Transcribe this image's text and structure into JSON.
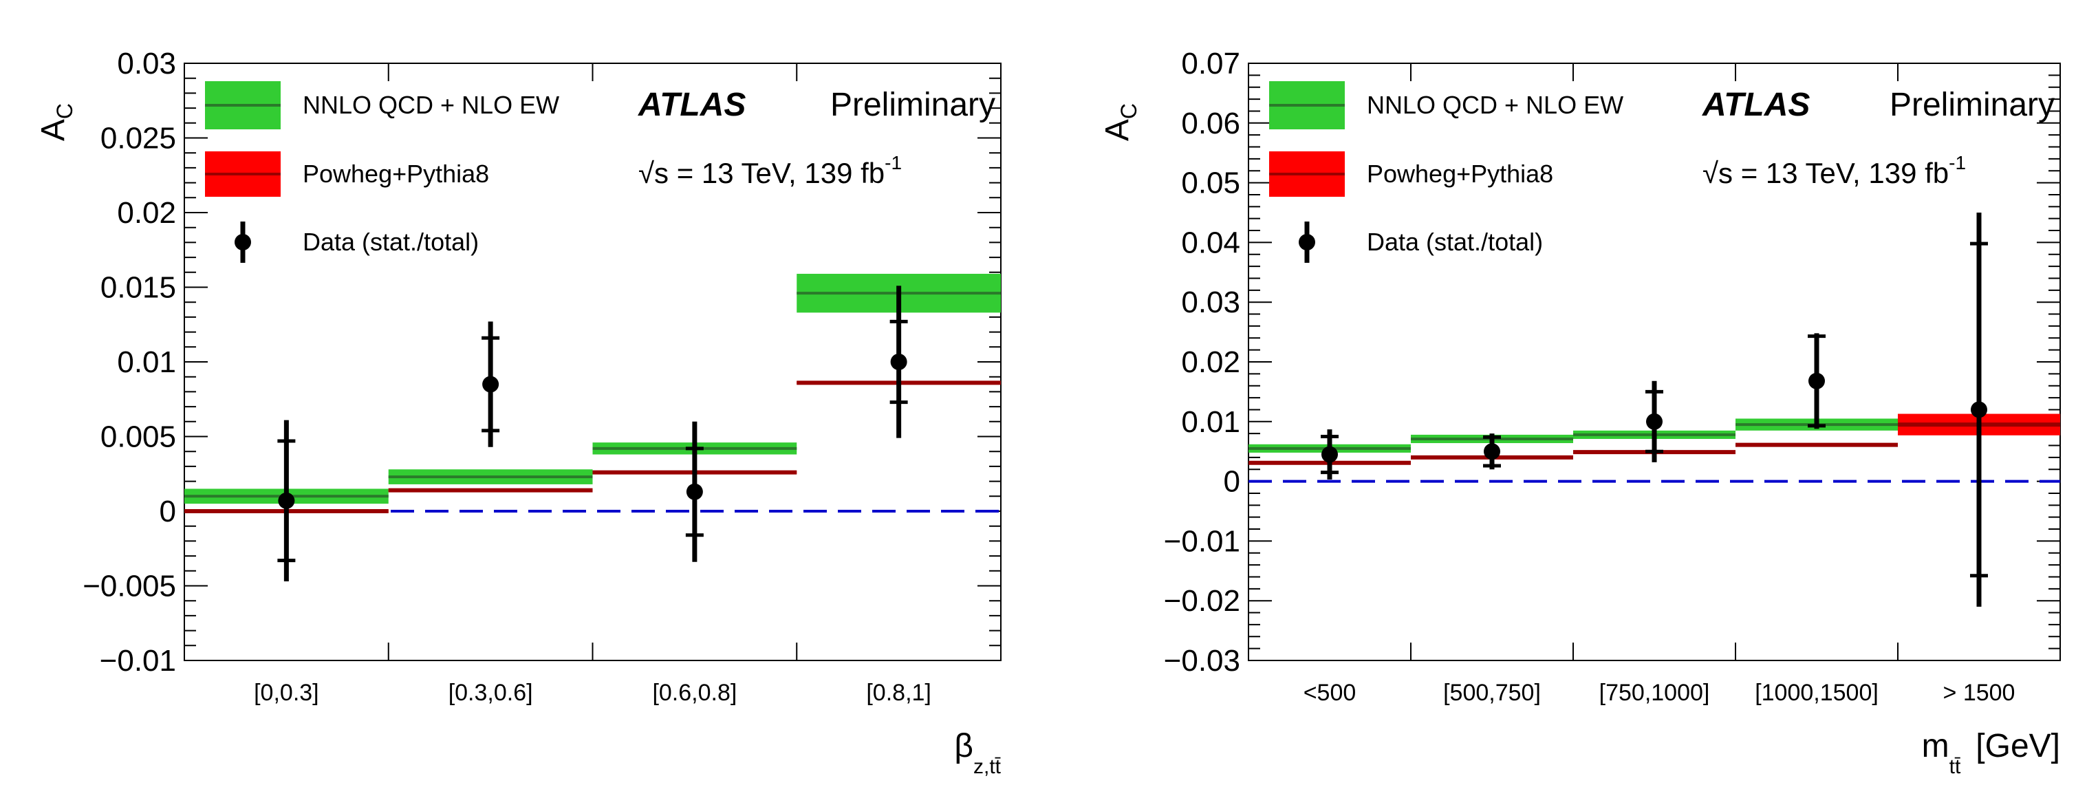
{
  "chart_data": [
    {
      "type": "bar",
      "panel": "left",
      "ylabel": "A",
      "ylabel_sub": "C",
      "xlabel": "β",
      "xlabel_sub": "z,tt̄",
      "xlabel_unit": "",
      "ylim": [
        -0.01,
        0.03
      ],
      "yticks": [
        "−0.01",
        "−0.005",
        "0",
        "0.005",
        "0.01",
        "0.015",
        "0.02",
        "0.025",
        "0.03"
      ],
      "ytick_values": [
        -0.01,
        -0.005,
        0,
        0.005,
        0.01,
        0.015,
        0.02,
        0.025,
        0.03
      ],
      "categories": [
        "[0,0.3]",
        "[0.3,0.6]",
        "[0.6,0.8]",
        "[0.8,1]"
      ],
      "series": [
        {
          "name": "NNLO QCD + NLO EW",
          "color": "#33cc33",
          "line_color": "#2a7a2a",
          "values": [
            0.001,
            0.0023,
            0.0042,
            0.0146
          ],
          "band": [
            0.0005,
            0.0005,
            0.0004,
            0.0013
          ]
        },
        {
          "name": "Powheg+Pythia8",
          "color": "#ff0000",
          "line_color": "#990000",
          "values": [
            0.0,
            0.0014,
            0.0026,
            0.0086
          ],
          "band": [
            0.0001,
            0.0001,
            0.0001,
            0.0001
          ]
        },
        {
          "name": "Data (stat./total)",
          "color": "#000000",
          "values": [
            0.0007,
            0.0085,
            0.0013,
            0.01
          ],
          "stat_err": [
            0.004,
            0.0031,
            0.0029,
            0.0027
          ],
          "total_err": [
            0.0054,
            0.0042,
            0.0047,
            0.0051
          ]
        }
      ],
      "zero_line_color": "#0000cc"
    },
    {
      "type": "bar",
      "panel": "right",
      "ylabel": "A",
      "ylabel_sub": "C",
      "xlabel": "m",
      "xlabel_sub": "tt̄",
      "xlabel_unit": "[GeV]",
      "ylim": [
        -0.03,
        0.07
      ],
      "yticks": [
        "−0.03",
        "−0.02",
        "−0.01",
        "0",
        "0.01",
        "0.02",
        "0.03",
        "0.04",
        "0.05",
        "0.06",
        "0.07"
      ],
      "ytick_values": [
        -0.03,
        -0.02,
        -0.01,
        0,
        0.01,
        0.02,
        0.03,
        0.04,
        0.05,
        0.06,
        0.07
      ],
      "categories": [
        "<500",
        "[500,750]",
        "[750,1000]",
        "[1000,1500]",
        "> 1500"
      ],
      "series": [
        {
          "name": "NNLO QCD + NLO EW",
          "color": "#33cc33",
          "line_color": "#2a7a2a",
          "values": [
            0.0055,
            0.0071,
            0.0078,
            0.0095,
            0.0095
          ],
          "band": [
            0.0007,
            0.0007,
            0.0007,
            0.001,
            0.0015
          ]
        },
        {
          "name": "Powheg+Pythia8",
          "color": "#ff0000",
          "line_color": "#990000",
          "values": [
            0.0031,
            0.004,
            0.0049,
            0.0061,
            0.0095
          ],
          "band": [
            0.0002,
            0.0002,
            0.0002,
            0.0002,
            0.0018
          ]
        },
        {
          "name": "Data (stat./total)",
          "color": "#000000",
          "values": [
            0.0045,
            0.005,
            0.01,
            0.0168,
            0.012
          ],
          "stat_err": [
            0.003,
            0.0024,
            0.005,
            0.0075,
            0.0278
          ],
          "total_err": [
            0.0042,
            0.003,
            0.0068,
            0.008,
            0.033
          ]
        }
      ],
      "zero_line_color": "#0000cc"
    }
  ],
  "legend": {
    "theory": "NNLO QCD + NLO EW",
    "powheg": "Powheg+Pythia8",
    "data": "Data (stat./total)"
  },
  "labels": {
    "atlas": "ATLAS",
    "preliminary": "Preliminary",
    "energy_prefix": "√s = 13 TeV, 139 fb",
    "energy_sup": "-1"
  }
}
